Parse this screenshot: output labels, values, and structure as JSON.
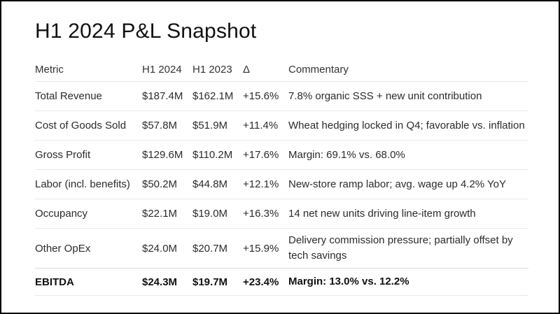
{
  "page": {
    "title": "H1 2024 P&L Snapshot"
  },
  "table": {
    "columns": {
      "metric": "Metric",
      "h1_2024": "H1 2024",
      "h1_2023": "H1 2023",
      "delta": "Δ",
      "commentary": "Commentary"
    },
    "rows": [
      {
        "metric": "Total Revenue",
        "h1_2024": "$187.4M",
        "h1_2023": "$162.1M",
        "delta": "+15.6%",
        "commentary": "7.8% organic SSS + new unit contribution",
        "emphasis": false
      },
      {
        "metric": "Cost of Goods Sold",
        "h1_2024": "$57.8M",
        "h1_2023": "$51.9M",
        "delta": "+11.4%",
        "commentary": "Wheat hedging locked in Q4; favorable vs. inflation",
        "emphasis": false
      },
      {
        "metric": "Gross Profit",
        "h1_2024": "$129.6M",
        "h1_2023": "$110.2M",
        "delta": "+17.6%",
        "commentary": "Margin: 69.1% vs. 68.0%",
        "emphasis": false
      },
      {
        "metric": "Labor (incl. benefits)",
        "h1_2024": "$50.2M",
        "h1_2023": "$44.8M",
        "delta": "+12.1%",
        "commentary": "New-store ramp labor; avg. wage up 4.2% YoY",
        "emphasis": false
      },
      {
        "metric": "Occupancy",
        "h1_2024": "$22.1M",
        "h1_2023": "$19.0M",
        "delta": "+16.3%",
        "commentary": "14 net new units driving line-item growth",
        "emphasis": false
      },
      {
        "metric": "Other OpEx",
        "h1_2024": "$24.0M",
        "h1_2023": "$20.7M",
        "delta": "+15.9%",
        "commentary": "Delivery commission pressure; partially offset by tech savings",
        "emphasis": false
      },
      {
        "metric": "EBITDA",
        "h1_2024": "$24.3M",
        "h1_2023": "$19.7M",
        "delta": "+23.4%",
        "commentary": "Margin: 13.0% vs. 12.2%",
        "emphasis": true
      }
    ]
  },
  "colors": {
    "frame": "#000000",
    "separator": "#e8e8e8",
    "emphasis_separator": "#dadada",
    "title_text": "#111111",
    "body_text": "#2b2b2b"
  }
}
